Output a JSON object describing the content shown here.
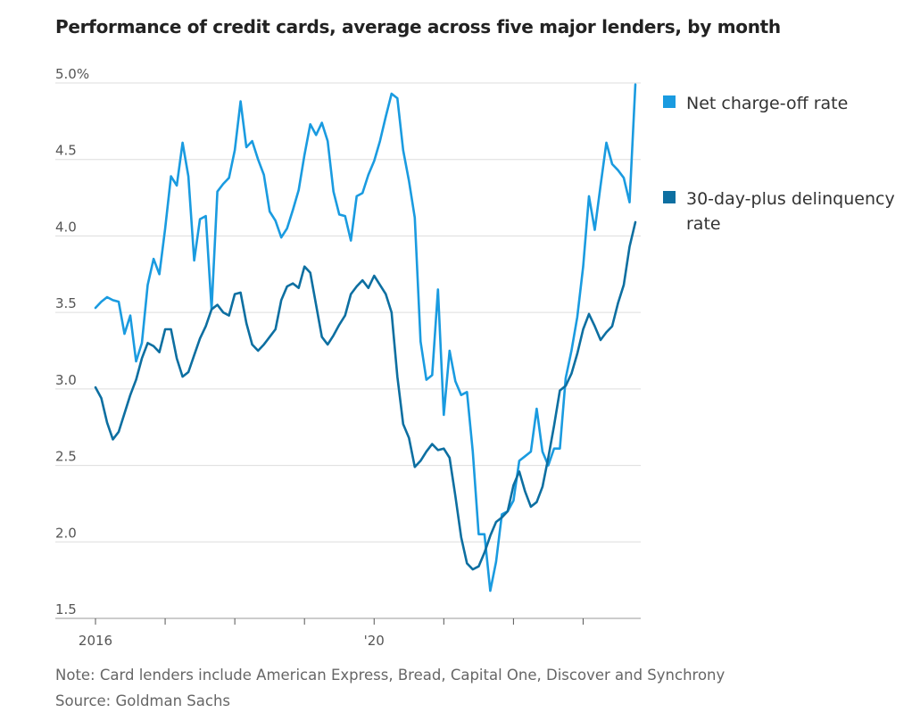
{
  "chart_data": {
    "type": "line",
    "title": "Performance of credit cards, average across five major lenders, by month",
    "xlabel": "",
    "ylabel": "",
    "ylim": [
      1.5,
      5.0
    ],
    "y_ticks": [
      {
        "value": 5.0,
        "label": "5.0%"
      },
      {
        "value": 4.5,
        "label": "4.5"
      },
      {
        "value": 4.0,
        "label": "4.0"
      },
      {
        "value": 3.5,
        "label": "3.5"
      },
      {
        "value": 3.0,
        "label": "3.0"
      },
      {
        "value": 2.5,
        "label": "2.5"
      },
      {
        "value": 2.0,
        "label": "2.0"
      },
      {
        "value": 1.5,
        "label": "1.5"
      }
    ],
    "x_start": "2016-01",
    "x_end": "2023-10",
    "x_tick_labels": [
      {
        "date": "2016-01",
        "label": "2016"
      },
      {
        "date": "2020-01",
        "label": "'20"
      }
    ],
    "x_tick_marks": [
      "2016-01",
      "2017-01",
      "2018-01",
      "2019-01",
      "2020-01",
      "2021-01",
      "2022-01",
      "2023-01"
    ],
    "grid": true,
    "legend_position": "right",
    "series": [
      {
        "name": "Net charge-off rate",
        "color": "#1a9be0",
        "x": [
          "2016-01",
          "2016-02",
          "2016-03",
          "2016-04",
          "2016-05",
          "2016-06",
          "2016-07",
          "2016-08",
          "2016-09",
          "2016-10",
          "2016-11",
          "2016-12",
          "2017-01",
          "2017-02",
          "2017-03",
          "2017-04",
          "2017-05",
          "2017-06",
          "2017-07",
          "2017-08",
          "2017-09",
          "2017-10",
          "2017-11",
          "2017-12",
          "2018-01",
          "2018-02",
          "2018-03",
          "2018-04",
          "2018-05",
          "2018-06",
          "2018-07",
          "2018-08",
          "2018-09",
          "2018-10",
          "2018-11",
          "2018-12",
          "2019-01",
          "2019-02",
          "2019-03",
          "2019-04",
          "2019-05",
          "2019-06",
          "2019-07",
          "2019-08",
          "2019-09",
          "2019-10",
          "2019-11",
          "2019-12",
          "2020-01",
          "2020-02",
          "2020-03",
          "2020-04",
          "2020-05",
          "2020-06",
          "2020-07",
          "2020-08",
          "2020-09",
          "2020-10",
          "2020-11",
          "2020-12",
          "2021-01",
          "2021-02",
          "2021-03",
          "2021-04",
          "2021-05",
          "2021-06",
          "2021-07",
          "2021-08",
          "2021-09",
          "2021-10",
          "2021-11",
          "2021-12",
          "2022-01",
          "2022-02",
          "2022-03",
          "2022-04",
          "2022-05",
          "2022-06",
          "2022-07",
          "2022-08",
          "2022-09",
          "2022-10",
          "2022-11",
          "2022-12",
          "2023-01",
          "2023-02",
          "2023-03",
          "2023-04",
          "2023-05",
          "2023-06",
          "2023-07",
          "2023-08",
          "2023-09",
          "2023-10"
        ],
        "values": [
          3.53,
          3.57,
          3.6,
          3.58,
          3.57,
          3.36,
          3.48,
          3.18,
          3.3,
          3.68,
          3.85,
          3.75,
          4.05,
          4.39,
          4.33,
          4.61,
          4.39,
          3.84,
          4.11,
          4.13,
          3.52,
          4.29,
          4.34,
          4.38,
          4.56,
          4.88,
          4.58,
          4.62,
          4.5,
          4.4,
          4.16,
          4.1,
          3.99,
          4.05,
          4.17,
          4.3,
          4.53,
          4.73,
          4.66,
          4.74,
          4.62,
          4.29,
          4.14,
          4.13,
          3.97,
          4.26,
          4.28,
          4.4,
          4.49,
          4.62,
          4.78,
          4.93,
          4.9,
          4.56,
          4.36,
          4.12,
          3.31,
          3.06,
          3.09,
          3.65,
          2.83,
          3.25,
          3.05,
          2.96,
          2.98,
          2.59,
          2.05,
          2.05,
          1.68,
          1.87,
          2.18,
          2.2,
          2.27,
          2.53,
          2.56,
          2.59,
          2.87,
          2.59,
          2.5,
          2.61,
          2.61,
          3.07,
          3.25,
          3.47,
          3.8,
          4.26,
          4.04,
          4.33,
          4.61,
          4.47,
          4.43,
          4.38,
          4.22,
          4.99
        ]
      },
      {
        "name": "30-day-plus delinquency rate",
        "color": "#0d6fa1",
        "x": [
          "2016-01",
          "2016-02",
          "2016-03",
          "2016-04",
          "2016-05",
          "2016-06",
          "2016-07",
          "2016-08",
          "2016-09",
          "2016-10",
          "2016-11",
          "2016-12",
          "2017-01",
          "2017-02",
          "2017-03",
          "2017-04",
          "2017-05",
          "2017-06",
          "2017-07",
          "2017-08",
          "2017-09",
          "2017-10",
          "2017-11",
          "2017-12",
          "2018-01",
          "2018-02",
          "2018-03",
          "2018-04",
          "2018-05",
          "2018-06",
          "2018-07",
          "2018-08",
          "2018-09",
          "2018-10",
          "2018-11",
          "2018-12",
          "2019-01",
          "2019-02",
          "2019-03",
          "2019-04",
          "2019-05",
          "2019-06",
          "2019-07",
          "2019-08",
          "2019-09",
          "2019-10",
          "2019-11",
          "2019-12",
          "2020-01",
          "2020-02",
          "2020-03",
          "2020-04",
          "2020-05",
          "2020-06",
          "2020-07",
          "2020-08",
          "2020-09",
          "2020-10",
          "2020-11",
          "2020-12",
          "2021-01",
          "2021-02",
          "2021-03",
          "2021-04",
          "2021-05",
          "2021-06",
          "2021-07",
          "2021-08",
          "2021-09",
          "2021-10",
          "2021-11",
          "2021-12",
          "2022-01",
          "2022-02",
          "2022-03",
          "2022-04",
          "2022-05",
          "2022-06",
          "2022-07",
          "2022-08",
          "2022-09",
          "2022-10",
          "2022-11",
          "2022-12",
          "2023-01",
          "2023-02",
          "2023-03",
          "2023-04",
          "2023-05",
          "2023-06",
          "2023-07",
          "2023-08",
          "2023-09",
          "2023-10"
        ],
        "values": [
          3.01,
          2.94,
          2.78,
          2.67,
          2.72,
          2.84,
          2.96,
          3.06,
          3.2,
          3.3,
          3.28,
          3.24,
          3.39,
          3.39,
          3.2,
          3.08,
          3.11,
          3.22,
          3.33,
          3.41,
          3.52,
          3.55,
          3.5,
          3.48,
          3.62,
          3.63,
          3.43,
          3.29,
          3.25,
          3.29,
          3.34,
          3.39,
          3.58,
          3.67,
          3.69,
          3.66,
          3.8,
          3.76,
          3.55,
          3.34,
          3.29,
          3.35,
          3.42,
          3.48,
          3.62,
          3.67,
          3.71,
          3.66,
          3.74,
          3.68,
          3.62,
          3.5,
          3.08,
          2.77,
          2.68,
          2.49,
          2.53,
          2.59,
          2.64,
          2.6,
          2.61,
          2.55,
          2.3,
          2.03,
          1.86,
          1.82,
          1.84,
          1.93,
          2.04,
          2.13,
          2.16,
          2.2,
          2.37,
          2.46,
          2.33,
          2.23,
          2.26,
          2.36,
          2.55,
          2.76,
          2.99,
          3.02,
          3.1,
          3.23,
          3.39,
          3.49,
          3.41,
          3.32,
          3.37,
          3.41,
          3.56,
          3.68,
          3.93,
          4.09
        ]
      }
    ],
    "annotations": []
  },
  "footer": {
    "note": "Note: Card lenders include American Express, Bread, Capital One, Discover and Synchrony",
    "source": "Source: Goldman Sachs"
  }
}
